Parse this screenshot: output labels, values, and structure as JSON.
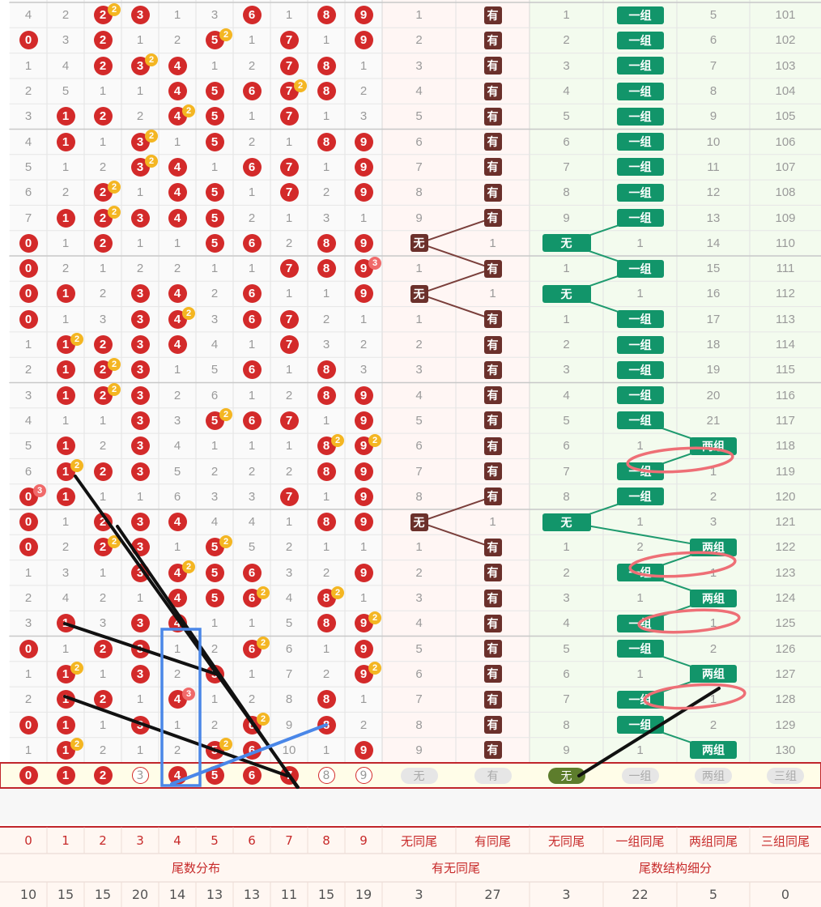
{
  "rows": [
    {
      "d": [
        "4",
        "2",
        "2",
        "3",
        "1",
        "3",
        "6",
        "1",
        "8",
        "9"
      ],
      "hit": [
        0,
        0,
        1,
        1,
        0,
        0,
        1,
        0,
        1,
        1
      ],
      "badges": {
        "2": "2"
      },
      "wu": "1",
      "you": "有",
      "ywu": "1",
      "tag": "一组",
      "two": "5",
      "issue": "101"
    },
    {
      "d": [
        "0",
        "3",
        "2",
        "1",
        "2",
        "5",
        "1",
        "7",
        "1",
        "9"
      ],
      "hit": [
        1,
        0,
        1,
        0,
        0,
        1,
        0,
        1,
        0,
        1
      ],
      "badges": {
        "5": "2"
      },
      "wu": "2",
      "you": "有",
      "ywu": "2",
      "tag": "一组",
      "two": "6",
      "issue": "102"
    },
    {
      "d": [
        "1",
        "4",
        "2",
        "3",
        "4",
        "1",
        "2",
        "7",
        "8",
        "1"
      ],
      "hit": [
        0,
        0,
        1,
        1,
        1,
        0,
        0,
        1,
        1,
        0
      ],
      "badges": {
        "3": "2"
      },
      "wu": "3",
      "you": "有",
      "ywu": "3",
      "tag": "一组",
      "two": "7",
      "issue": "103"
    },
    {
      "d": [
        "2",
        "5",
        "1",
        "1",
        "4",
        "5",
        "6",
        "7",
        "8",
        "2"
      ],
      "hit": [
        0,
        0,
        0,
        0,
        1,
        1,
        1,
        1,
        1,
        0
      ],
      "badges": {
        "7": "2"
      },
      "wu": "4",
      "you": "有",
      "ywu": "4",
      "tag": "一组",
      "two": "8",
      "issue": "104"
    },
    {
      "d": [
        "3",
        "1",
        "2",
        "2",
        "4",
        "5",
        "1",
        "7",
        "1",
        "3"
      ],
      "hit": [
        0,
        1,
        1,
        0,
        1,
        1,
        0,
        1,
        0,
        0
      ],
      "badges": {
        "4": "2"
      },
      "wu": "5",
      "you": "有",
      "ywu": "5",
      "tag": "一组",
      "two": "9",
      "issue": "105"
    },
    {
      "d": [
        "4",
        "1",
        "1",
        "3",
        "1",
        "5",
        "2",
        "1",
        "8",
        "9"
      ],
      "hit": [
        0,
        1,
        0,
        1,
        0,
        1,
        0,
        0,
        1,
        1
      ],
      "badges": {
        "3": "2"
      },
      "wu": "6",
      "you": "有",
      "ywu": "6",
      "tag": "一组",
      "two": "10",
      "issue": "106"
    },
    {
      "d": [
        "5",
        "1",
        "2",
        "3",
        "4",
        "1",
        "6",
        "7",
        "1",
        "9"
      ],
      "hit": [
        0,
        0,
        0,
        1,
        1,
        0,
        1,
        1,
        0,
        1
      ],
      "badges": {
        "3": "2"
      },
      "wu": "7",
      "you": "有",
      "ywu": "7",
      "tag": "一组",
      "two": "11",
      "issue": "107"
    },
    {
      "d": [
        "6",
        "2",
        "2",
        "1",
        "4",
        "5",
        "1",
        "7",
        "2",
        "9"
      ],
      "hit": [
        0,
        0,
        1,
        0,
        1,
        1,
        0,
        1,
        0,
        1
      ],
      "badges": {
        "2": "2"
      },
      "wu": "8",
      "you": "有",
      "ywu": "8",
      "tag": "一组",
      "two": "12",
      "issue": "108"
    },
    {
      "d": [
        "7",
        "1",
        "2",
        "3",
        "4",
        "5",
        "2",
        "1",
        "3",
        "1"
      ],
      "hit": [
        0,
        1,
        1,
        1,
        1,
        1,
        0,
        0,
        0,
        0
      ],
      "badges": {
        "2": "2"
      },
      "wu": "9",
      "you": "有",
      "ywu": "9",
      "tag": "一组",
      "two": "13",
      "issue": "109"
    },
    {
      "d": [
        "0",
        "1",
        "2",
        "1",
        "1",
        "5",
        "6",
        "2",
        "8",
        "9"
      ],
      "hit": [
        1,
        0,
        1,
        0,
        0,
        1,
        1,
        0,
        1,
        1
      ],
      "badges": {},
      "wu": "无",
      "you": "1",
      "ywu": "无",
      "tag": "1",
      "two": "14",
      "issue": "110"
    },
    {
      "d": [
        "0",
        "2",
        "1",
        "2",
        "2",
        "1",
        "1",
        "7",
        "8",
        "9"
      ],
      "hit": [
        1,
        0,
        0,
        0,
        0,
        0,
        0,
        1,
        1,
        1
      ],
      "badges": {
        "9": "3"
      },
      "wu": "1",
      "you": "有",
      "ywu": "1",
      "tag": "一组",
      "two": "15",
      "issue": "111"
    },
    {
      "d": [
        "0",
        "1",
        "2",
        "3",
        "4",
        "2",
        "6",
        "1",
        "1",
        "9"
      ],
      "hit": [
        1,
        1,
        0,
        1,
        1,
        0,
        1,
        0,
        0,
        1
      ],
      "badges": {},
      "wu": "无",
      "you": "1",
      "ywu": "无",
      "tag": "1",
      "two": "16",
      "issue": "112"
    },
    {
      "d": [
        "0",
        "1",
        "3",
        "3",
        "4",
        "3",
        "6",
        "7",
        "2",
        "1"
      ],
      "hit": [
        1,
        0,
        0,
        1,
        1,
        0,
        1,
        1,
        0,
        0
      ],
      "badges": {
        "4": "2"
      },
      "wu": "1",
      "you": "有",
      "ywu": "1",
      "tag": "一组",
      "two": "17",
      "issue": "113"
    },
    {
      "d": [
        "1",
        "1",
        "2",
        "3",
        "4",
        "4",
        "1",
        "7",
        "3",
        "2"
      ],
      "hit": [
        0,
        1,
        1,
        1,
        1,
        0,
        0,
        1,
        0,
        0
      ],
      "badges": {
        "1": "2"
      },
      "wu": "2",
      "you": "有",
      "ywu": "2",
      "tag": "一组",
      "two": "18",
      "issue": "114"
    },
    {
      "d": [
        "2",
        "1",
        "2",
        "3",
        "1",
        "5",
        "6",
        "1",
        "8",
        "3"
      ],
      "hit": [
        0,
        1,
        1,
        1,
        0,
        0,
        1,
        0,
        1,
        0
      ],
      "badges": {
        "2": "2"
      },
      "wu": "3",
      "you": "有",
      "ywu": "3",
      "tag": "一组",
      "two": "19",
      "issue": "115"
    },
    {
      "d": [
        "3",
        "1",
        "2",
        "3",
        "2",
        "6",
        "1",
        "2",
        "8",
        "9"
      ],
      "hit": [
        0,
        1,
        1,
        1,
        0,
        0,
        0,
        0,
        1,
        1
      ],
      "badges": {
        "2": "2"
      },
      "wu": "4",
      "you": "有",
      "ywu": "4",
      "tag": "一组",
      "two": "20",
      "issue": "116"
    },
    {
      "d": [
        "4",
        "1",
        "1",
        "3",
        "3",
        "5",
        "6",
        "7",
        "1",
        "9"
      ],
      "hit": [
        0,
        0,
        0,
        1,
        0,
        1,
        1,
        1,
        0,
        1
      ],
      "badges": {
        "5": "2"
      },
      "wu": "5",
      "you": "有",
      "ywu": "5",
      "tag": "一组",
      "two": "21",
      "issue": "117"
    },
    {
      "d": [
        "5",
        "1",
        "2",
        "3",
        "4",
        "1",
        "1",
        "1",
        "8",
        "9"
      ],
      "hit": [
        0,
        1,
        0,
        1,
        0,
        0,
        0,
        0,
        1,
        1
      ],
      "badges": {
        "8": "2",
        "9": "2"
      },
      "wu": "6",
      "you": "有",
      "ywu": "6",
      "tag": "1",
      "two": "两组",
      "issue": "118"
    },
    {
      "d": [
        "6",
        "1",
        "2",
        "3",
        "5",
        "2",
        "2",
        "2",
        "8",
        "9"
      ],
      "hit": [
        0,
        1,
        1,
        1,
        0,
        0,
        0,
        0,
        1,
        1
      ],
      "badges": {
        "1": "2"
      },
      "wu": "7",
      "you": "有",
      "ywu": "7",
      "tag": "一组",
      "two": "1",
      "issue": "119"
    },
    {
      "d": [
        "0",
        "1",
        "1",
        "1",
        "6",
        "3",
        "3",
        "7",
        "1",
        "9"
      ],
      "hit": [
        1,
        1,
        0,
        0,
        0,
        0,
        0,
        1,
        0,
        1
      ],
      "badges": {
        "0": "3"
      },
      "wu": "8",
      "you": "有",
      "ywu": "8",
      "tag": "一组",
      "two": "2",
      "issue": "120"
    },
    {
      "d": [
        "0",
        "1",
        "2",
        "3",
        "4",
        "4",
        "4",
        "1",
        "8",
        "9"
      ],
      "hit": [
        1,
        0,
        1,
        1,
        1,
        0,
        0,
        0,
        1,
        1
      ],
      "badges": {},
      "wu": "无",
      "you": "1",
      "ywu": "无",
      "tag": "1",
      "two": "3",
      "issue": "121"
    },
    {
      "d": [
        "0",
        "2",
        "2",
        "3",
        "1",
        "5",
        "5",
        "2",
        "1",
        "1"
      ],
      "hit": [
        1,
        0,
        1,
        1,
        0,
        1,
        0,
        0,
        0,
        0
      ],
      "badges": {
        "2": "2",
        "5": "2"
      },
      "wu": "1",
      "you": "有",
      "ywu": "1",
      "tag": "2",
      "two": "两组",
      "issue": "122"
    },
    {
      "d": [
        "1",
        "3",
        "1",
        "3",
        "4",
        "5",
        "6",
        "3",
        "2",
        "9"
      ],
      "hit": [
        0,
        0,
        0,
        1,
        1,
        1,
        1,
        0,
        0,
        1
      ],
      "badges": {
        "4": "2"
      },
      "wu": "2",
      "you": "有",
      "ywu": "2",
      "tag": "一组",
      "two": "1",
      "issue": "123"
    },
    {
      "d": [
        "2",
        "4",
        "2",
        "1",
        "4",
        "5",
        "6",
        "4",
        "8",
        "1"
      ],
      "hit": [
        0,
        0,
        0,
        0,
        1,
        1,
        1,
        0,
        1,
        0
      ],
      "badges": {
        "6": "2",
        "8": "2"
      },
      "wu": "3",
      "you": "有",
      "ywu": "3",
      "tag": "1",
      "two": "两组",
      "issue": "124"
    },
    {
      "d": [
        "3",
        "1",
        "3",
        "3",
        "4",
        "1",
        "1",
        "5",
        "8",
        "9"
      ],
      "hit": [
        0,
        1,
        0,
        1,
        1,
        0,
        0,
        0,
        1,
        1
      ],
      "badges": {
        "9": "2"
      },
      "wu": "4",
      "you": "有",
      "ywu": "4",
      "tag": "一组",
      "two": "1",
      "issue": "125"
    },
    {
      "d": [
        "0",
        "1",
        "2",
        "3",
        "1",
        "2",
        "6",
        "6",
        "1",
        "9"
      ],
      "hit": [
        1,
        0,
        1,
        1,
        0,
        0,
        1,
        0,
        0,
        1
      ],
      "badges": {
        "6": "2"
      },
      "wu": "5",
      "you": "有",
      "ywu": "5",
      "tag": "一组",
      "two": "2",
      "issue": "126"
    },
    {
      "d": [
        "1",
        "1",
        "1",
        "3",
        "2",
        "5",
        "1",
        "7",
        "2",
        "9"
      ],
      "hit": [
        0,
        1,
        0,
        1,
        0,
        1,
        0,
        0,
        0,
        1
      ],
      "badges": {
        "1": "2",
        "9": "2"
      },
      "wu": "6",
      "you": "有",
      "ywu": "6",
      "tag": "1",
      "two": "两组",
      "issue": "127"
    },
    {
      "d": [
        "2",
        "1",
        "2",
        "1",
        "4",
        "1",
        "2",
        "8",
        "8",
        "1"
      ],
      "hit": [
        0,
        1,
        1,
        0,
        1,
        0,
        0,
        0,
        1,
        0
      ],
      "badges": {
        "4": "3"
      },
      "wu": "7",
      "you": "有",
      "ywu": "7",
      "tag": "一组",
      "two": "1",
      "issue": "128"
    },
    {
      "d": [
        "0",
        "1",
        "1",
        "3",
        "1",
        "2",
        "6",
        "9",
        "8",
        "2"
      ],
      "hit": [
        1,
        1,
        0,
        1,
        0,
        0,
        1,
        0,
        1,
        0
      ],
      "badges": {
        "6": "2"
      },
      "wu": "8",
      "you": "有",
      "ywu": "8",
      "tag": "一组",
      "two": "2",
      "issue": "129"
    },
    {
      "d": [
        "1",
        "1",
        "2",
        "1",
        "2",
        "5",
        "6",
        "10",
        "1",
        "9"
      ],
      "hit": [
        0,
        1,
        0,
        0,
        0,
        1,
        1,
        0,
        0,
        1
      ],
      "badges": {
        "1": "2",
        "5": "2"
      },
      "wu": "9",
      "you": "有",
      "ywu": "9",
      "tag": "1",
      "two": "两组",
      "issue": "130"
    }
  ],
  "select_row": {
    "digits": [
      "0",
      "1",
      "2",
      "3",
      "4",
      "5",
      "6",
      "7",
      "8",
      "9"
    ],
    "selected": [
      1,
      1,
      1,
      0,
      1,
      1,
      1,
      1,
      0,
      0
    ],
    "pills": [
      "无",
      "有",
      "无",
      "一组",
      "两组",
      "三组"
    ],
    "pill_on": [
      0,
      0,
      1,
      0,
      0,
      0
    ]
  },
  "headers": [
    "0",
    "1",
    "2",
    "3",
    "4",
    "5",
    "6",
    "7",
    "8",
    "9",
    "无同尾",
    "有同尾",
    "无同尾",
    "一组同尾",
    "两组同尾",
    "三组同尾"
  ],
  "groups": [
    "尾数分布",
    "有无同尾",
    "尾数结构细分"
  ],
  "totals": [
    "10",
    "15",
    "15",
    "20",
    "14",
    "13",
    "13",
    "11",
    "15",
    "19",
    "3",
    "27",
    "3",
    "22",
    "5",
    "0"
  ],
  "colors": {
    "ball": "#d32a2a",
    "you": "#6b302b",
    "tag": "#12956a",
    "badge_yellow": "#f4b622",
    "badge_red": "#f06a6a",
    "header_text": "#c72a2a"
  }
}
